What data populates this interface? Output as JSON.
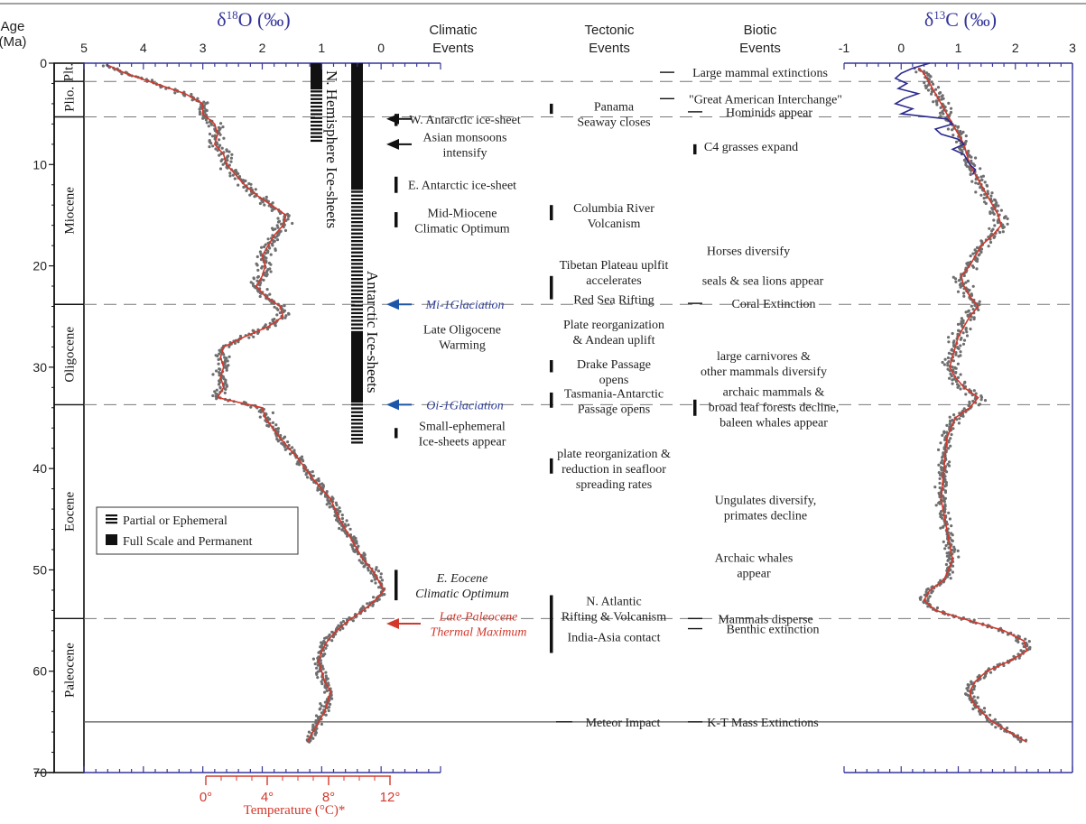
{
  "chart_data": {
    "type": "scatter",
    "age_axis": {
      "title_line1": "Age",
      "title_line2": "(Ma)",
      "ticks": [
        "0",
        "10",
        "20",
        "30",
        "40",
        "50",
        "60",
        "70"
      ],
      "range": [
        0,
        70
      ]
    },
    "o18_axis": {
      "title": "δ18O (‰)",
      "title_main": "δ",
      "title_sup": "18",
      "title_rest": "O (‰)",
      "ticks": [
        "5",
        "4",
        "3",
        "2",
        "1",
        "0"
      ],
      "range": [
        5,
        -1
      ],
      "reversed": true
    },
    "c13_axis": {
      "title": "δ13C (‰)",
      "title_main": "δ",
      "title_sup": "13",
      "title_rest": "C (‰)",
      "ticks": [
        "-1",
        "0",
        "1",
        "2",
        "3"
      ],
      "range": [
        -1,
        3
      ]
    },
    "temp_axis": {
      "title": "Temperature (°C)*",
      "ticks": [
        "0°",
        "4°",
        "8°",
        "12°"
      ],
      "color": "#d2382c"
    },
    "column_headers": {
      "climatic": [
        "Climatic",
        "Events"
      ],
      "tectonic": [
        "Tectonic",
        "Events"
      ],
      "biotic": [
        "Biotic",
        "Events"
      ]
    },
    "epochs": [
      {
        "name": "Plt.",
        "top": 0,
        "bottom": 1.8
      },
      {
        "name": "Plio.",
        "top": 1.8,
        "bottom": 5.3
      },
      {
        "name": "Miocene",
        "top": 5.3,
        "bottom": 23.8
      },
      {
        "name": "Oligocene",
        "top": 23.8,
        "bottom": 33.7
      },
      {
        "name": "Eocene",
        "top": 33.7,
        "bottom": 54.8
      },
      {
        "name": "Paleocene",
        "top": 54.8,
        "bottom": 65
      }
    ],
    "boundaries_dashed": [
      1.8,
      5.3,
      23.8,
      33.7,
      54.8
    ],
    "boundary_solid": 65,
    "o18_curve": [
      [
        0.2,
        4.6
      ],
      [
        1,
        4.3
      ],
      [
        2,
        3.8
      ],
      [
        3,
        3.3
      ],
      [
        4,
        3.0
      ],
      [
        5,
        3.0
      ],
      [
        6,
        2.8
      ],
      [
        7,
        2.75
      ],
      [
        8,
        2.8
      ],
      [
        9,
        2.65
      ],
      [
        10,
        2.6
      ],
      [
        11,
        2.45
      ],
      [
        12,
        2.3
      ],
      [
        13,
        2.1
      ],
      [
        14,
        1.85
      ],
      [
        15,
        1.6
      ],
      [
        16,
        1.65
      ],
      [
        17,
        1.8
      ],
      [
        18,
        1.9
      ],
      [
        19,
        2.0
      ],
      [
        20,
        1.95
      ],
      [
        21,
        2.0
      ],
      [
        22,
        2.1
      ],
      [
        23,
        1.95
      ],
      [
        24,
        1.7
      ],
      [
        25,
        1.65
      ],
      [
        26,
        1.9
      ],
      [
        27,
        2.3
      ],
      [
        28,
        2.65
      ],
      [
        29,
        2.7
      ],
      [
        30,
        2.65
      ],
      [
        31,
        2.7
      ],
      [
        32,
        2.65
      ],
      [
        33,
        2.75
      ],
      [
        34,
        2.0
      ],
      [
        35,
        1.95
      ],
      [
        37,
        1.7
      ],
      [
        39,
        1.4
      ],
      [
        41,
        1.15
      ],
      [
        43,
        0.85
      ],
      [
        45,
        0.7
      ],
      [
        47,
        0.5
      ],
      [
        49,
        0.3
      ],
      [
        50,
        0.15
      ],
      [
        51,
        0.05
      ],
      [
        52,
        -0.05
      ],
      [
        53,
        0.1
      ],
      [
        54,
        0.3
      ],
      [
        55,
        0.55
      ],
      [
        56,
        0.75
      ],
      [
        57,
        0.9
      ],
      [
        58,
        1.0
      ],
      [
        59,
        1.05
      ],
      [
        60,
        1.0
      ],
      [
        61,
        0.95
      ],
      [
        62,
        0.85
      ],
      [
        63,
        0.9
      ],
      [
        64,
        0.95
      ],
      [
        65,
        1.05
      ],
      [
        66,
        1.15
      ],
      [
        67,
        1.25
      ]
    ],
    "c13_curve": [
      [
        0.5,
        0.3
      ],
      [
        1,
        0.4
      ],
      [
        2,
        0.5
      ],
      [
        3,
        0.6
      ],
      [
        4,
        0.7
      ],
      [
        5,
        0.8
      ],
      [
        6,
        0.9
      ],
      [
        7,
        1.0
      ],
      [
        8,
        1.1
      ],
      [
        9,
        1.15
      ],
      [
        10,
        1.2
      ],
      [
        11,
        1.3
      ],
      [
        12,
        1.4
      ],
      [
        13,
        1.5
      ],
      [
        14,
        1.6
      ],
      [
        15,
        1.7
      ],
      [
        16,
        1.75
      ],
      [
        17,
        1.6
      ],
      [
        18,
        1.4
      ],
      [
        19,
        1.3
      ],
      [
        20,
        1.2
      ],
      [
        21,
        1.05
      ],
      [
        22,
        1.1
      ],
      [
        23,
        1.2
      ],
      [
        24,
        1.35
      ],
      [
        25,
        1.2
      ],
      [
        26,
        1.1
      ],
      [
        27,
        1.0
      ],
      [
        28,
        0.95
      ],
      [
        29,
        0.9
      ],
      [
        30,
        0.85
      ],
      [
        31,
        0.95
      ],
      [
        32,
        1.1
      ],
      [
        33,
        1.35
      ],
      [
        34,
        1.2
      ],
      [
        35,
        0.95
      ],
      [
        37,
        0.8
      ],
      [
        40,
        0.75
      ],
      [
        43,
        0.7
      ],
      [
        46,
        0.8
      ],
      [
        49,
        0.9
      ],
      [
        51,
        0.75
      ],
      [
        52,
        0.5
      ],
      [
        53,
        0.4
      ],
      [
        54,
        0.6
      ],
      [
        55,
        1.2
      ],
      [
        56,
        1.8
      ],
      [
        57,
        2.15
      ],
      [
        58,
        2.2
      ],
      [
        59,
        1.9
      ],
      [
        60,
        1.5
      ],
      [
        61,
        1.3
      ],
      [
        62,
        1.2
      ],
      [
        63,
        1.25
      ],
      [
        64,
        1.4
      ],
      [
        65,
        1.6
      ],
      [
        66,
        1.9
      ],
      [
        67,
        2.2
      ]
    ],
    "c13_blue_curve": [
      [
        0,
        0.5
      ],
      [
        0.5,
        0.2
      ],
      [
        1,
        0.0
      ],
      [
        1.5,
        -0.1
      ],
      [
        2,
        0.1
      ],
      [
        2.5,
        -0.05
      ],
      [
        3,
        0.3
      ],
      [
        3.5,
        0.05
      ],
      [
        4,
        -0.1
      ],
      [
        4.5,
        0.2
      ],
      [
        5,
        0.0
      ],
      [
        5.5,
        0.8
      ],
      [
        6,
        0.9
      ],
      [
        6.5,
        0.6
      ],
      [
        7,
        0.7
      ],
      [
        7.5,
        1.0
      ],
      [
        8,
        1.1
      ],
      [
        8.5,
        0.9
      ],
      [
        9,
        1.1
      ],
      [
        10,
        1.2
      ],
      [
        10.5,
        1.3
      ],
      [
        11,
        1.25
      ]
    ],
    "o18_scatter_spread": 0.18,
    "c13_scatter_spread": 0.2,
    "climatic_events": [
      {
        "lines": [
          "W. Antarctic ice-sheet"
        ],
        "age": 5.5,
        "bar": [
          5,
          6.2
        ],
        "arrow": "black"
      },
      {
        "lines": [
          "Asian monsoons",
          "intensify"
        ],
        "age": 8.0,
        "arrow": "black"
      },
      {
        "lines": [
          "E. Antarctic ice-sheet"
        ],
        "age": 12.0,
        "bar": [
          11.2,
          12.8
        ]
      },
      {
        "lines": [
          "Mid-Miocene",
          "Climatic Optimum"
        ],
        "age": 15.5,
        "bar": [
          14.7,
          16.2
        ]
      },
      {
        "lines": [
          "Mi-1Glaciation"
        ],
        "age": 23.8,
        "arrow": "blue",
        "italic": true,
        "color": "#2f3f9b"
      },
      {
        "lines": [
          "Late Oligocene",
          "Warming"
        ],
        "age": 27.0
      },
      {
        "lines": [
          "Oi-1Glaciation"
        ],
        "age": 33.7,
        "arrow": "blue",
        "italic": true,
        "color": "#2f3f9b"
      },
      {
        "lines": [
          "Small-ephemeral",
          "Ice-sheets appear"
        ],
        "age": 36.5,
        "bar": [
          36,
          37
        ]
      },
      {
        "lines": [
          "E. Eocene",
          "Climatic Optimum"
        ],
        "age": 51.5,
        "bar": [
          50,
          53
        ],
        "italic": true
      },
      {
        "lines": [
          "Late Paleocene",
          "Thermal Maximum"
        ],
        "age": 55.3,
        "arrow": "red",
        "italic": true,
        "color": "#d2382c"
      }
    ],
    "tectonic_events": [
      {
        "lines": [
          "Panama",
          "Seaway closes"
        ],
        "age": 5.0,
        "bar": [
          4,
          5
        ]
      },
      {
        "lines": [
          "Columbia River",
          "Volcanism"
        ],
        "age": 15.0,
        "bar": [
          14,
          15.5
        ]
      },
      {
        "lines": [
          "Tibetan Plateau uplfit",
          "accelerates"
        ],
        "age": 20.6,
        "bar": [
          21,
          23.3
        ]
      },
      {
        "lines": [
          "Red Sea Rifting"
        ],
        "age": 23.3
      },
      {
        "lines": [
          "Plate reorganization",
          "& Andean uplift"
        ],
        "age": 26.5
      },
      {
        "lines": [
          "Drake Passage",
          "opens"
        ],
        "age": 30.4,
        "bar": [
          29.3,
          30.5
        ]
      },
      {
        "lines": [
          "Tasmania-Antarctic",
          "Passage opens"
        ],
        "age": 33.3,
        "bar": [
          32.5,
          34
        ]
      },
      {
        "lines": [
          "plate reorganization &",
          "reduction in seafloor",
          "spreading rates"
        ],
        "age": 40.0,
        "bar": [
          39,
          40.5
        ]
      },
      {
        "lines": [
          "N. Atlantic",
          "Rifting & Volcanism"
        ],
        "age": 53.8
      },
      {
        "lines": [
          "India-Asia contact"
        ],
        "age": 56.6,
        "bar": [
          52.5,
          58.2
        ]
      },
      {
        "lines": [
          "Meteor Impact"
        ],
        "age": 65.0,
        "tick": true
      }
    ],
    "biotic_events": [
      {
        "lines": [
          "Large mammal extinctions"
        ],
        "age": 0.9,
        "tick": true
      },
      {
        "lines": [
          "\"Great American Interchange\""
        ],
        "age": 3.5,
        "tick": true
      },
      {
        "lines": [
          "Hominids appear"
        ],
        "age": 4.8,
        "tick": true
      },
      {
        "lines": [
          "C4 grasses expand"
        ],
        "age": 8.2,
        "bar": [
          8,
          9
        ]
      },
      {
        "lines": [
          "Horses diversify"
        ],
        "age": 18.5
      },
      {
        "lines": [
          "seals & sea lions appear"
        ],
        "age": 21.4
      },
      {
        "lines": [
          "Coral Extinction"
        ],
        "age": 23.7,
        "tick": true
      },
      {
        "lines": [
          "large carnivores &",
          "other mammals diversify"
        ],
        "age": 29.6
      },
      {
        "lines": [
          "archaic mammals &",
          "broad leaf forests decline,",
          "baleen whales appear"
        ],
        "age": 33.9,
        "bar": [
          33.2,
          34.8
        ]
      },
      {
        "lines": [
          "Ungulates diversify,",
          "primates decline"
        ],
        "age": 43.8
      },
      {
        "lines": [
          "Archaic whales",
          "appear"
        ],
        "age": 49.5
      },
      {
        "lines": [
          "Mammals disperse"
        ],
        "age": 54.8,
        "tick": true
      },
      {
        "lines": [
          "Benthic extinction"
        ],
        "age": 55.8,
        "tick": true
      },
      {
        "lines": [
          "K-T Mass Extinctions"
        ],
        "age": 65.0,
        "tick": true
      }
    ],
    "ice_sheets": {
      "north": {
        "label": "N. Hemisphere Ice-sheets",
        "solid": [
          0,
          2.6
        ],
        "partial": [
          2.6,
          7.8
        ]
      },
      "antarctic": {
        "label": "Antarctic Ice-sheets",
        "solid_top": [
          0,
          12.5
        ],
        "partial_mid": [
          12.5,
          26.5
        ],
        "solid_bottom": [
          26.5,
          33.5
        ],
        "partial_bottom": [
          33.5,
          37.5
        ]
      }
    },
    "legend": [
      {
        "label": "Partial or Ephemeral",
        "symbol": "partial"
      },
      {
        "label": "Full Scale and Permanent",
        "symbol": "solid"
      }
    ],
    "colors": {
      "curve": "#d2382c",
      "scatter": "#6e6e6e",
      "blue_curve": "#2a2a8f",
      "axis_tick": "#35359a",
      "temp": "#d2382c"
    },
    "grid": false
  }
}
